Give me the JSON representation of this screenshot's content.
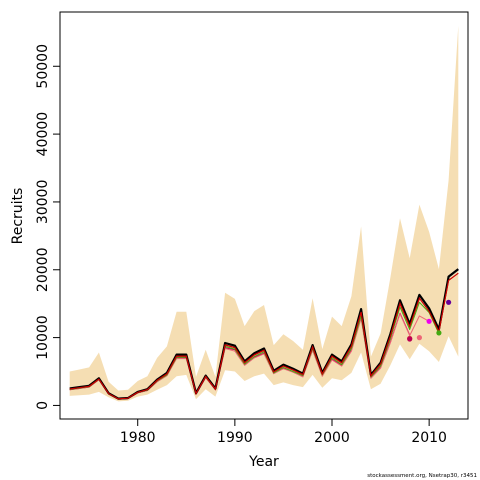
{
  "chart_data": {
    "type": "line",
    "title": "",
    "xlabel": "Year",
    "ylabel": "Recruits",
    "xlim": [
      1972,
      2014
    ],
    "ylim": [
      -2000,
      58000
    ],
    "x_ticks": [
      1980,
      1990,
      2000,
      2010
    ],
    "y_ticks": [
      0,
      10000,
      20000,
      30000,
      40000,
      50000
    ],
    "grid": false,
    "legend": "none",
    "footnote": "stockassessment.org, Nsetrap30, r3451",
    "colors": {
      "band": "#F5DEB3",
      "main": "#000000",
      "inner": "#CC0000",
      "retro": [
        "#DD4444",
        "#EE6677",
        "#BB0055",
        "#EE00EE",
        "#44AA11",
        "#660099"
      ]
    },
    "years": [
      1973,
      1974,
      1975,
      1976,
      1977,
      1978,
      1979,
      1980,
      1981,
      1982,
      1983,
      1984,
      1985,
      1986,
      1987,
      1988,
      1989,
      1990,
      1991,
      1992,
      1993,
      1994,
      1995,
      1996,
      1997,
      1998,
      1999,
      2000,
      2001,
      2002,
      2003,
      2004,
      2005,
      2006,
      2007,
      2008,
      2009,
      2010,
      2011,
      2012,
      2013
    ],
    "band": {
      "upper": [
        5000,
        5300,
        5600,
        7800,
        3500,
        2200,
        2300,
        3600,
        4300,
        7000,
        8700,
        13800,
        13800,
        4200,
        8200,
        4200,
        16600,
        15700,
        11700,
        13900,
        14800,
        8900,
        10500,
        9500,
        8200,
        15800,
        8300,
        13100,
        11700,
        16100,
        26400,
        7200,
        10600,
        18800,
        27600,
        21700,
        29600,
        25600,
        20100,
        33200,
        56000
      ],
      "lower": [
        1400,
        1500,
        1600,
        2000,
        1200,
        600,
        700,
        1300,
        1600,
        2300,
        3000,
        4300,
        4500,
        900,
        2400,
        1300,
        5200,
        5000,
        3600,
        4300,
        4700,
        3000,
        3400,
        3000,
        2700,
        4500,
        2600,
        4000,
        3700,
        4800,
        7800,
        2400,
        3200,
        5900,
        9000,
        6800,
        9100,
        8000,
        6400,
        10200,
        7200
      ]
    },
    "series": [
      {
        "values": [
          2500,
          2700,
          2900,
          4000,
          1800,
          1000,
          1100,
          2000,
          2400,
          3800,
          4800,
          7500,
          7500,
          1800,
          4400,
          2500,
          9200,
          8800,
          6500,
          7700,
          8400,
          5100,
          6000,
          5400,
          4700,
          8900,
          4800,
          7500,
          6500,
          9000,
          14200,
          4500,
          6300,
          10500,
          15500,
          12000,
          16300,
          14300,
          11200,
          19000,
          20100
        ]
      },
      {
        "values": [
          2400,
          2600,
          2800,
          3900,
          1700,
          950,
          1050,
          1900,
          2300,
          3700,
          4600,
          7200,
          7200,
          1700,
          4300,
          2400,
          8900,
          8500,
          6300,
          7400,
          8100,
          4900,
          5800,
          5200,
          4500,
          8600,
          4600,
          7200,
          6200,
          8700,
          13700,
          4300,
          6000,
          10100,
          14900,
          11600,
          15700
        ]
      },
      {
        "values": [
          2300,
          2500,
          2700,
          3800,
          1650,
          900,
          1000,
          1850,
          2200,
          3500,
          4400,
          7000,
          7000,
          1650,
          4100,
          2300,
          8500,
          8200,
          6000,
          7100,
          7700,
          4700,
          5500,
          4900,
          4300,
          8200,
          4400,
          6800,
          5900,
          8200,
          13000,
          4100,
          5600,
          9300,
          13600,
          10400
        ]
      },
      {
        "values": [
          2300,
          2500,
          2700,
          3800,
          1650,
          900,
          1000,
          1850,
          2200,
          3500,
          4400,
          6900,
          6900,
          1650,
          4100,
          2300,
          8400,
          8000,
          5900,
          7000,
          7600,
          4700,
          5400,
          4900,
          4200,
          8100,
          4300,
          6700,
          5800,
          8000,
          12800,
          4000,
          5500,
          9200,
          13500,
          10300,
          13200,
          12400
        ]
      },
      {
        "values": [
          2350,
          2550,
          2750,
          3850,
          1680,
          920,
          1020,
          1880,
          2250,
          3600,
          4500,
          7100,
          7100,
          1680,
          4200,
          2350,
          8700,
          8300,
          6100,
          7200,
          7900,
          4800,
          5600,
          5000,
          4400,
          8400,
          4500,
          7000,
          6000,
          8400,
          13200,
          4200,
          5800,
          9800,
          14500,
          11200,
          15200,
          13700,
          10600
        ]
      }
    ],
    "retro_points": [
      {
        "x": 2008,
        "y": 9900
      },
      {
        "x": 2009,
        "y": 10000
      },
      {
        "x": 2008,
        "y": 9800
      },
      {
        "x": 2010,
        "y": 12400
      },
      {
        "x": 2011,
        "y": 10700
      },
      {
        "x": 2012,
        "y": 15200
      }
    ]
  }
}
